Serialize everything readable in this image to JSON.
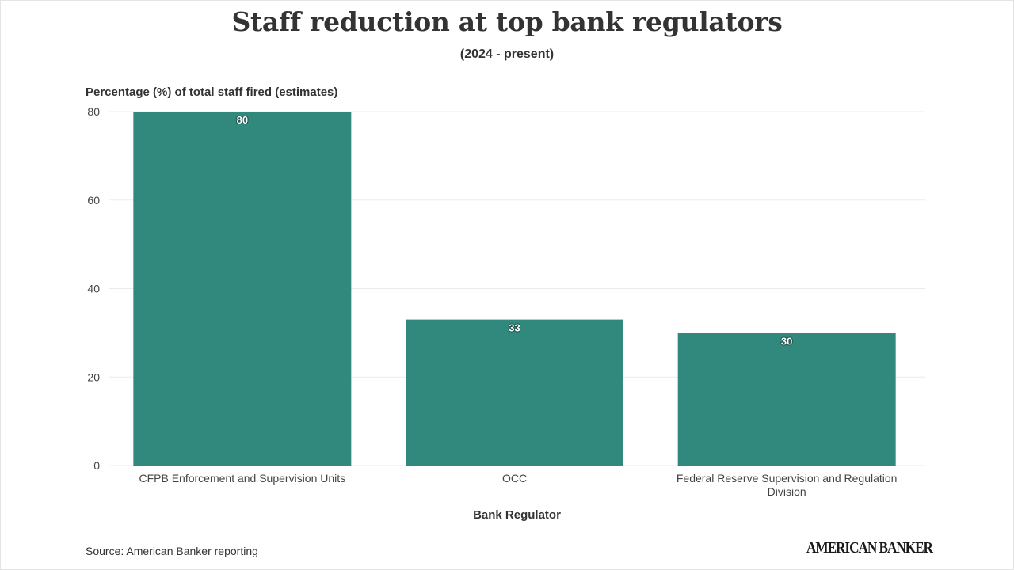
{
  "title": "Staff reduction at top bank regulators",
  "subtitle": "(2024 - present)",
  "source": "Source: American Banker reporting",
  "logo": "AMERICAN BANKER",
  "chart_data": {
    "type": "bar",
    "title": "Staff reduction at top bank regulators",
    "subtitle": "(2024 - present)",
    "ylabel": "Percentage (%) of total staff fired (estimates)",
    "xlabel": "Bank Regulator",
    "categories": [
      [
        "CFPB Enforcement and Supervision Units"
      ],
      [
        "OCC"
      ],
      [
        "Federal Reserve Supervision and Regulation",
        "Division"
      ]
    ],
    "category_names": [
      "CFPB Enforcement and Supervision Units",
      "OCC",
      "Federal Reserve Supervision and Regulation Division"
    ],
    "values": [
      80,
      33,
      30
    ],
    "data_labels": [
      "80",
      "33",
      "30"
    ],
    "ylim": [
      0,
      80
    ],
    "yticks": [
      0,
      20,
      40,
      60,
      80
    ],
    "grid": true,
    "bar_color": "#31887c",
    "grid_color": "#ebebeb"
  }
}
